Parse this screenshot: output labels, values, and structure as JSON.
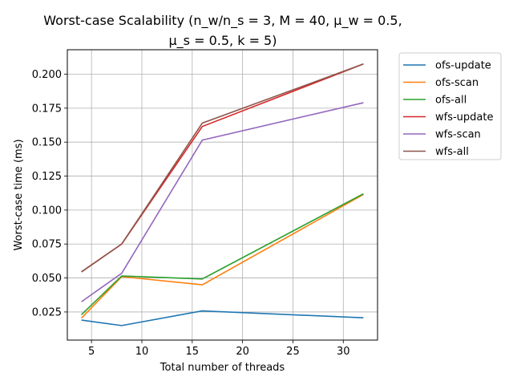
{
  "chart_data": {
    "type": "line",
    "title_line1": "Worst-case Scalability (n_w/n_s = 3, M = 40, μ_w = 0.5,",
    "title_line2": "μ_s = 0.5, k = 5)",
    "xlabel": "Total number of threads",
    "ylabel": "Worst-case time (ms)",
    "xlim": [
      2.6,
      33.4
    ],
    "ylim": [
      0.0043,
      0.218
    ],
    "xticks": [
      5,
      10,
      15,
      20,
      25,
      30
    ],
    "xtick_labels": [
      "5",
      "10",
      "15",
      "20",
      "25",
      "30"
    ],
    "yticks": [
      0.025,
      0.05,
      0.075,
      0.1,
      0.125,
      0.15,
      0.175,
      0.2
    ],
    "ytick_labels": [
      "0.025",
      "0.050",
      "0.075",
      "0.100",
      "0.125",
      "0.150",
      "0.175",
      "0.200"
    ],
    "grid": true,
    "legend_position": "outside-right",
    "x": [
      4,
      8,
      16,
      32
    ],
    "series": [
      {
        "name": "ofs-update",
        "color": "#1f77b4",
        "values": [
          0.019,
          0.015,
          0.0258,
          0.0207
        ]
      },
      {
        "name": "ofs-scan",
        "color": "#ff7f0e",
        "values": [
          0.0205,
          0.051,
          0.045,
          0.1115
        ]
      },
      {
        "name": "ofs-all",
        "color": "#2ca02c",
        "values": [
          0.023,
          0.0515,
          0.0493,
          0.112
        ]
      },
      {
        "name": "wfs-update",
        "color": "#d62728",
        "values": [
          0.0545,
          0.075,
          0.1615,
          0.2075
        ]
      },
      {
        "name": "wfs-scan",
        "color": "#9467bd",
        "values": [
          0.0325,
          0.0535,
          0.1515,
          0.179
        ]
      },
      {
        "name": "wfs-all",
        "color": "#8c564b",
        "values": [
          0.0545,
          0.075,
          0.164,
          0.2075
        ]
      }
    ]
  }
}
